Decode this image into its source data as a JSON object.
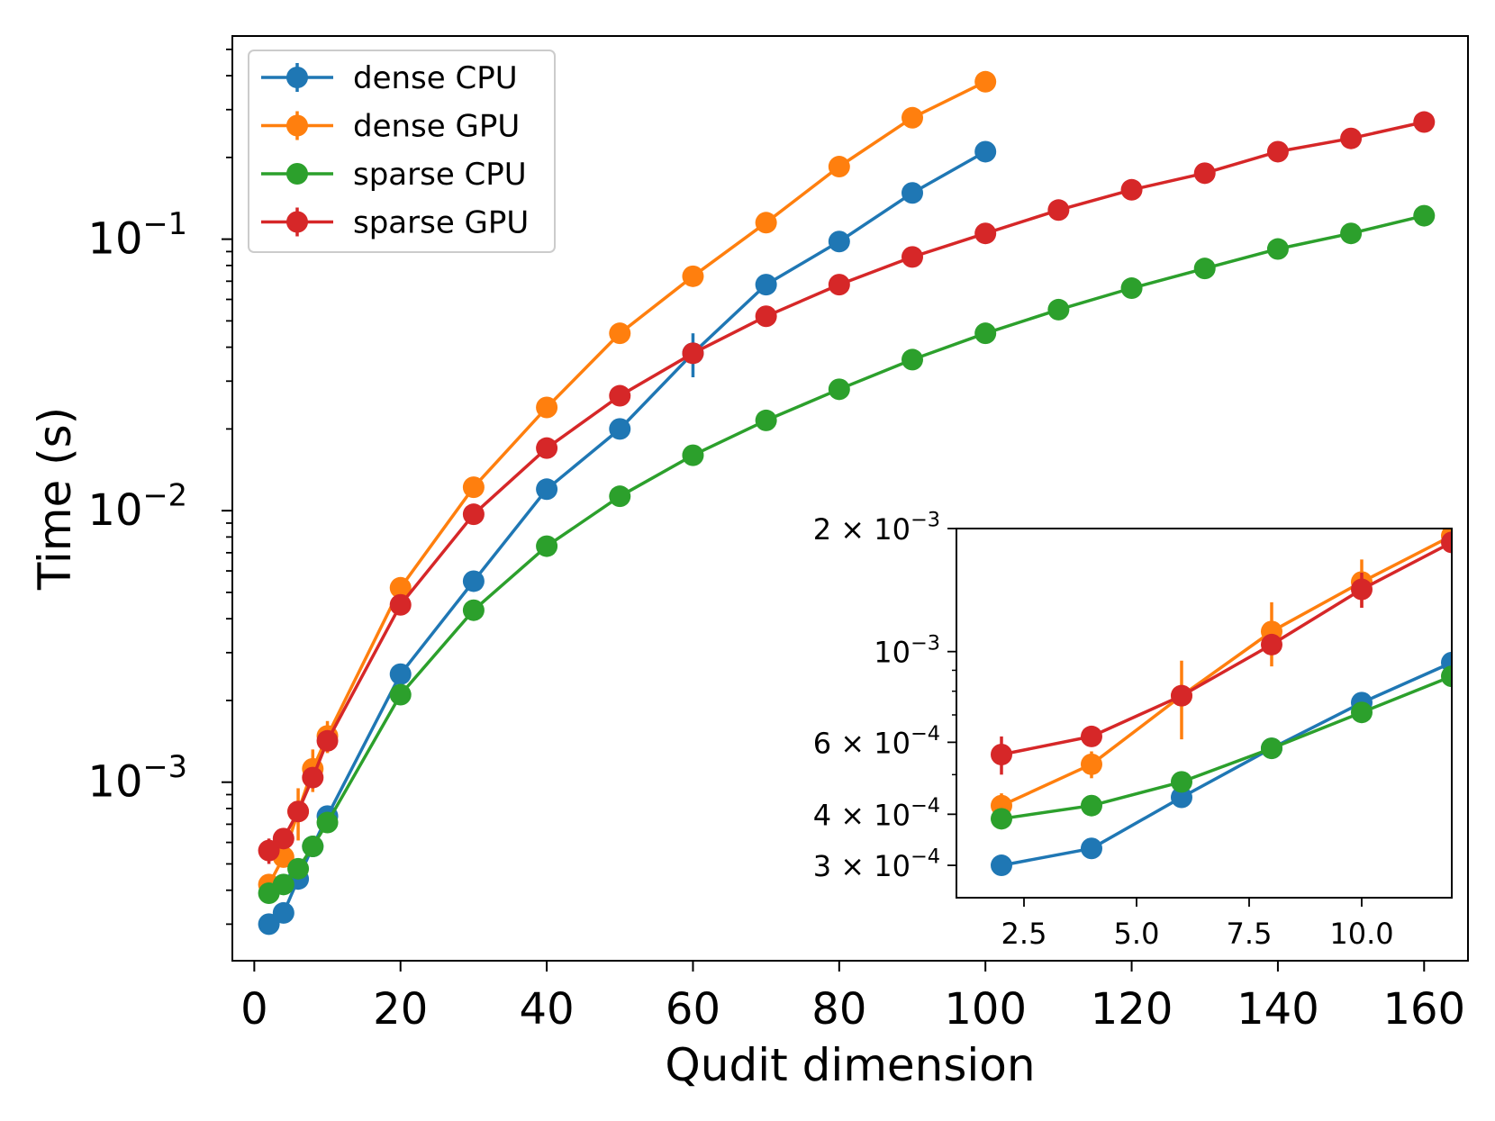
{
  "chart_data": [
    {
      "type": "line",
      "name": "main",
      "xlabel": "Qudit dimension",
      "ylabel": "Time (s)",
      "xscale": "linear",
      "yscale": "log",
      "xlim": [
        -3.0,
        166.0
      ],
      "ylim": [
        0.00022,
        0.56
      ],
      "xticks": [
        0,
        20,
        40,
        60,
        80,
        100,
        120,
        140,
        160
      ],
      "xtick_labels": [
        "0",
        "20",
        "40",
        "60",
        "80",
        "100",
        "120",
        "140",
        "160"
      ],
      "yticks": [
        0.001,
        0.01,
        0.1
      ],
      "ytick_labels": [
        {
          "base": "10",
          "exp": "−3"
        },
        {
          "base": "10",
          "exp": "−2"
        },
        {
          "base": "10",
          "exp": "−1"
        }
      ],
      "legend": {
        "position": "top-left"
      },
      "series": [
        {
          "name": "dense CPU",
          "color": "#1f77b4",
          "x": [
            2,
            4,
            6,
            8,
            10,
            20,
            30,
            40,
            50,
            60,
            70,
            80,
            90,
            100
          ],
          "y": [
            0.0003,
            0.00033,
            0.00044,
            0.00058,
            0.00075,
            0.0025,
            0.0055,
            0.012,
            0.02,
            0.038,
            0.068,
            0.098,
            0.148,
            0.21
          ],
          "err": [
            0,
            0,
            0,
            0,
            0,
            0,
            0,
            0,
            0,
            0.007,
            0,
            0,
            0,
            0
          ]
        },
        {
          "name": "dense GPU",
          "color": "#ff7f0e",
          "x": [
            2,
            4,
            6,
            8,
            10,
            20,
            30,
            40,
            50,
            60,
            70,
            80,
            90,
            100
          ],
          "y": [
            0.00042,
            0.00053,
            0.00078,
            0.00112,
            0.00148,
            0.0052,
            0.0122,
            0.024,
            0.045,
            0.073,
            0.115,
            0.185,
            0.28,
            0.38
          ],
          "err": [
            3e-05,
            4e-05,
            0.00017,
            0.0002,
            0.0002,
            0,
            0,
            0,
            0,
            0,
            0,
            0,
            0,
            0
          ]
        },
        {
          "name": "sparse CPU",
          "color": "#2ca02c",
          "x": [
            2,
            4,
            6,
            8,
            10,
            20,
            30,
            40,
            50,
            60,
            70,
            80,
            90,
            100,
            110,
            120,
            130,
            140,
            150,
            160
          ],
          "y": [
            0.00039,
            0.00042,
            0.00048,
            0.00058,
            0.00071,
            0.0021,
            0.0043,
            0.0074,
            0.0113,
            0.016,
            0.0215,
            0.028,
            0.036,
            0.045,
            0.055,
            0.066,
            0.078,
            0.092,
            0.105,
            0.122
          ],
          "err": [
            0,
            0,
            0,
            0,
            0,
            0,
            0,
            0,
            0,
            0,
            0,
            0,
            0,
            0,
            0,
            0,
            0,
            0,
            0,
            0
          ]
        },
        {
          "name": "sparse GPU",
          "color": "#d62728",
          "x": [
            2,
            4,
            6,
            8,
            10,
            20,
            30,
            40,
            50,
            60,
            70,
            80,
            90,
            100,
            110,
            120,
            130,
            140,
            150,
            160
          ],
          "y": [
            0.00056,
            0.00062,
            0.00078,
            0.00104,
            0.00142,
            0.0045,
            0.0097,
            0.017,
            0.0265,
            0.038,
            0.052,
            0.068,
            0.086,
            0.105,
            0.128,
            0.152,
            0.175,
            0.21,
            0.235,
            0.27
          ],
          "err": [
            6e-05,
            0,
            0,
            0,
            0,
            0,
            0,
            0,
            0,
            0,
            0,
            0,
            0,
            0,
            0,
            0,
            0,
            0,
            0,
            0
          ]
        }
      ]
    },
    {
      "type": "line",
      "name": "inset",
      "xscale": "linear",
      "yscale": "log",
      "xlim": [
        1.0,
        12.0
      ],
      "ylim": [
        0.00025,
        0.002
      ],
      "xticks": [
        2.5,
        5.0,
        7.5,
        10.0
      ],
      "xtick_labels": [
        "2.5",
        "5.0",
        "7.5",
        "10.0"
      ],
      "yticks": [
        0.0003,
        0.0004,
        0.0006,
        0.001,
        0.002
      ],
      "ytick_labels": [
        {
          "base": "3 × 10",
          "exp": "−4"
        },
        {
          "base": "4 × 10",
          "exp": "−4"
        },
        {
          "base": "6 × 10",
          "exp": "−4"
        },
        {
          "base": "10",
          "exp": "−3"
        },
        {
          "base": "2 × 10",
          "exp": "−3"
        }
      ],
      "series": [
        {
          "name": "dense CPU",
          "color": "#1f77b4",
          "x": [
            2,
            4,
            6,
            8,
            10,
            12
          ],
          "y": [
            0.0003,
            0.00033,
            0.00044,
            0.00058,
            0.00075,
            0.00094
          ],
          "err": [
            0,
            0,
            0,
            0,
            0,
            0
          ]
        },
        {
          "name": "dense GPU",
          "color": "#ff7f0e",
          "x": [
            2,
            4,
            6,
            8,
            10,
            12
          ],
          "y": [
            0.00042,
            0.00053,
            0.00078,
            0.00112,
            0.00148,
            0.00192
          ],
          "err": [
            3e-05,
            4e-05,
            0.00017,
            0.0002,
            0.0002,
            0
          ]
        },
        {
          "name": "sparse CPU",
          "color": "#2ca02c",
          "x": [
            2,
            4,
            6,
            8,
            10,
            12
          ],
          "y": [
            0.00039,
            0.00042,
            0.00048,
            0.00058,
            0.00071,
            0.00087
          ],
          "err": [
            0,
            0,
            0,
            0,
            0,
            0
          ]
        },
        {
          "name": "sparse GPU",
          "color": "#d62728",
          "x": [
            2,
            4,
            6,
            8,
            10,
            12
          ],
          "y": [
            0.00056,
            0.00062,
            0.00078,
            0.00104,
            0.00142,
            0.00185
          ],
          "err": [
            6e-05,
            0,
            0,
            0,
            0.00014,
            0
          ]
        }
      ]
    }
  ]
}
